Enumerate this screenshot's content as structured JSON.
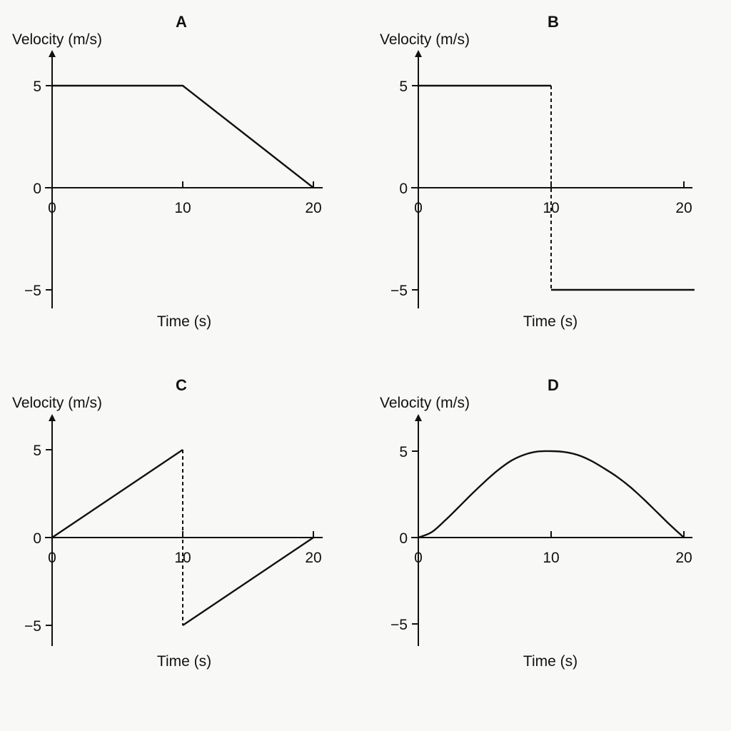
{
  "chart_data": [
    {
      "type": "line",
      "title": "A",
      "xlabel": "Time (s)",
      "ylabel": "Velocity (m/s)",
      "xlim": [
        0,
        20
      ],
      "ylim": [
        -5,
        5
      ],
      "xticks": [
        "0",
        "10",
        "20"
      ],
      "yticks": [
        "5",
        "0",
        "−5"
      ],
      "series": [
        {
          "x": [
            0,
            10,
            20
          ],
          "y": [
            5,
            5,
            0
          ]
        }
      ],
      "jumps": []
    },
    {
      "type": "line",
      "title": "B",
      "xlabel": "Time (s)",
      "ylabel": "Velocity (m/s)",
      "xlim": [
        0,
        20
      ],
      "ylim": [
        -5,
        5
      ],
      "xticks": [
        "0",
        "10",
        "20"
      ],
      "yticks": [
        "5",
        "0",
        "−5"
      ],
      "series": [
        {
          "x": [
            0,
            10
          ],
          "y": [
            5,
            5
          ]
        },
        {
          "x": [
            10,
            20.8
          ],
          "y": [
            -5,
            -5
          ]
        }
      ],
      "jumps": [
        {
          "x": 10,
          "from": 5,
          "to": -5
        }
      ]
    },
    {
      "type": "line",
      "title": "C",
      "xlabel": "Time (s)",
      "ylabel": "Velocity (m/s)",
      "xlim": [
        0,
        20
      ],
      "ylim": [
        -5,
        5
      ],
      "xticks": [
        "0",
        "10",
        "20"
      ],
      "yticks": [
        "5",
        "0",
        "−5"
      ],
      "series": [
        {
          "x": [
            0,
            10
          ],
          "y": [
            0,
            5
          ]
        },
        {
          "x": [
            10,
            20
          ],
          "y": [
            -5,
            0
          ]
        }
      ],
      "jumps": [
        {
          "x": 10,
          "from": 5,
          "to": -5
        }
      ]
    },
    {
      "type": "line",
      "title": "D",
      "xlabel": "Time (s)",
      "ylabel": "Velocity (m/s)",
      "xlim": [
        0,
        20
      ],
      "ylim": [
        -5,
        5
      ],
      "xticks": [
        "0",
        "10",
        "20"
      ],
      "yticks": [
        "5",
        "0",
        "−5"
      ],
      "series": [
        {
          "x": [
            0,
            1,
            2,
            3,
            4,
            5,
            6,
            7,
            8,
            9,
            10,
            11,
            12,
            13,
            14,
            15,
            16,
            17,
            18,
            19,
            20
          ],
          "y": [
            0,
            0.31,
            0.98,
            1.73,
            2.5,
            3.23,
            3.9,
            4.45,
            4.8,
            4.98,
            5,
            4.95,
            4.78,
            4.45,
            4.0,
            3.5,
            2.9,
            2.2,
            1.45,
            0.7,
            0
          ]
        }
      ],
      "jumps": []
    }
  ]
}
